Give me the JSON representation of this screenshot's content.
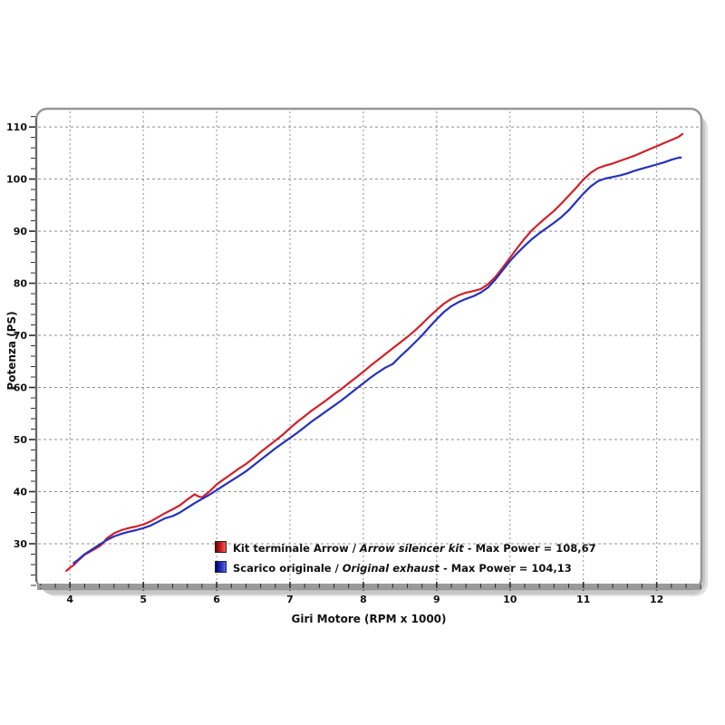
{
  "axes": {
    "x_title": "Giri Motore (RPM x 1000)",
    "y_title": "Potenza (PS)"
  },
  "legend": {
    "separator": "/",
    "items": [
      {
        "label_it": "Kit terminale Arrow",
        "label_en": "Arrow silencer kit",
        "max_label": "- Max Power = 108,67",
        "color": "#d32027",
        "gradient_dark": "#6b0000",
        "gradient_light": "#ff5a5a"
      },
      {
        "label_it": "Scarico originale",
        "label_en": "Original exhaust",
        "max_label": "- Max Power = 104,13",
        "color": "#2531bd",
        "gradient_dark": "#00006b",
        "gradient_light": "#5a66ff"
      }
    ]
  },
  "chart_data": {
    "type": "line",
    "title": "",
    "xlabel": "Giri Motore (RPM x 1000)",
    "ylabel": "Potenza (PS)",
    "xlim": [
      3.54,
      12.61
    ],
    "ylim": [
      21.3,
      113.5
    ],
    "x_major_ticks": [
      4,
      5,
      6,
      7,
      8,
      9,
      10,
      11,
      12
    ],
    "y_major_ticks": [
      30,
      40,
      50,
      60,
      70,
      80,
      90,
      100,
      110
    ],
    "x_minor_step": 0.2,
    "y_minor_step": 2,
    "grid": "dashed",
    "grid_color": "#8f8f8f",
    "frame_color": "#979797",
    "legend_position": "inside-bottom",
    "series": [
      {
        "name": "Kit terminale Arrow / Arrow silencer kit",
        "max_power": "108,67",
        "color": "#d32027",
        "points": [
          [
            3.95,
            24.8
          ],
          [
            4.0,
            25.4
          ],
          [
            4.05,
            25.9
          ],
          [
            4.1,
            26.6
          ],
          [
            4.2,
            27.9
          ],
          [
            4.3,
            28.7
          ],
          [
            4.4,
            29.5
          ],
          [
            4.45,
            30.1
          ],
          [
            4.5,
            31.0
          ],
          [
            4.6,
            32.0
          ],
          [
            4.7,
            32.6
          ],
          [
            4.8,
            33.0
          ],
          [
            4.9,
            33.3
          ],
          [
            5.0,
            33.7
          ],
          [
            5.1,
            34.3
          ],
          [
            5.2,
            35.1
          ],
          [
            5.3,
            35.9
          ],
          [
            5.4,
            36.6
          ],
          [
            5.5,
            37.4
          ],
          [
            5.6,
            38.5
          ],
          [
            5.65,
            39.0
          ],
          [
            5.7,
            39.5
          ],
          [
            5.75,
            39.1
          ],
          [
            5.8,
            38.9
          ],
          [
            5.9,
            40.0
          ],
          [
            6.0,
            41.4
          ],
          [
            6.1,
            42.4
          ],
          [
            6.2,
            43.4
          ],
          [
            6.3,
            44.4
          ],
          [
            6.4,
            45.3
          ],
          [
            6.5,
            46.4
          ],
          [
            6.6,
            47.6
          ],
          [
            6.7,
            48.7
          ],
          [
            6.8,
            49.8
          ],
          [
            6.9,
            50.9
          ],
          [
            7.0,
            52.2
          ],
          [
            7.1,
            53.4
          ],
          [
            7.2,
            54.5
          ],
          [
            7.3,
            55.6
          ],
          [
            7.4,
            56.6
          ],
          [
            7.5,
            57.6
          ],
          [
            7.6,
            58.7
          ],
          [
            7.7,
            59.7
          ],
          [
            7.8,
            60.8
          ],
          [
            7.9,
            61.9
          ],
          [
            8.0,
            63.0
          ],
          [
            8.1,
            64.2
          ],
          [
            8.2,
            65.3
          ],
          [
            8.3,
            66.4
          ],
          [
            8.4,
            67.5
          ],
          [
            8.5,
            68.6
          ],
          [
            8.6,
            69.7
          ],
          [
            8.7,
            70.9
          ],
          [
            8.8,
            72.2
          ],
          [
            8.9,
            73.6
          ],
          [
            9.0,
            74.9
          ],
          [
            9.1,
            76.1
          ],
          [
            9.2,
            77.0
          ],
          [
            9.3,
            77.7
          ],
          [
            9.4,
            78.2
          ],
          [
            9.5,
            78.5
          ],
          [
            9.6,
            78.9
          ],
          [
            9.7,
            79.8
          ],
          [
            9.8,
            81.2
          ],
          [
            9.9,
            83.0
          ],
          [
            10.0,
            84.9
          ],
          [
            10.1,
            86.8
          ],
          [
            10.2,
            88.6
          ],
          [
            10.3,
            90.2
          ],
          [
            10.4,
            91.5
          ],
          [
            10.5,
            92.7
          ],
          [
            10.6,
            93.9
          ],
          [
            10.7,
            95.3
          ],
          [
            10.8,
            96.8
          ],
          [
            10.9,
            98.3
          ],
          [
            11.0,
            99.9
          ],
          [
            11.1,
            101.2
          ],
          [
            11.2,
            102.1
          ],
          [
            11.3,
            102.6
          ],
          [
            11.4,
            103.0
          ],
          [
            11.5,
            103.5
          ],
          [
            11.6,
            104.0
          ],
          [
            11.7,
            104.5
          ],
          [
            11.8,
            105.1
          ],
          [
            11.9,
            105.7
          ],
          [
            12.0,
            106.3
          ],
          [
            12.1,
            106.9
          ],
          [
            12.2,
            107.5
          ],
          [
            12.3,
            108.1
          ],
          [
            12.35,
            108.67
          ]
        ]
      },
      {
        "name": "Scarico originale / Original exhaust",
        "max_power": "104,13",
        "color": "#2531bd",
        "points": [
          [
            4.05,
            26.3
          ],
          [
            4.1,
            26.8
          ],
          [
            4.2,
            28.0
          ],
          [
            4.3,
            28.9
          ],
          [
            4.4,
            29.8
          ],
          [
            4.5,
            30.7
          ],
          [
            4.6,
            31.4
          ],
          [
            4.7,
            31.9
          ],
          [
            4.8,
            32.3
          ],
          [
            4.9,
            32.6
          ],
          [
            5.0,
            33.0
          ],
          [
            5.1,
            33.5
          ],
          [
            5.2,
            34.2
          ],
          [
            5.3,
            34.9
          ],
          [
            5.4,
            35.3
          ],
          [
            5.5,
            36.0
          ],
          [
            5.6,
            36.9
          ],
          [
            5.7,
            37.8
          ],
          [
            5.8,
            38.6
          ],
          [
            5.9,
            39.4
          ],
          [
            6.0,
            40.3
          ],
          [
            6.1,
            41.2
          ],
          [
            6.2,
            42.1
          ],
          [
            6.3,
            43.0
          ],
          [
            6.4,
            43.9
          ],
          [
            6.5,
            45.0
          ],
          [
            6.6,
            46.1
          ],
          [
            6.7,
            47.2
          ],
          [
            6.8,
            48.3
          ],
          [
            6.9,
            49.3
          ],
          [
            7.0,
            50.3
          ],
          [
            7.1,
            51.3
          ],
          [
            7.2,
            52.4
          ],
          [
            7.3,
            53.5
          ],
          [
            7.4,
            54.5
          ],
          [
            7.5,
            55.5
          ],
          [
            7.6,
            56.5
          ],
          [
            7.7,
            57.5
          ],
          [
            7.8,
            58.6
          ],
          [
            7.9,
            59.7
          ],
          [
            8.0,
            60.8
          ],
          [
            8.1,
            61.9
          ],
          [
            8.2,
            62.9
          ],
          [
            8.3,
            63.8
          ],
          [
            8.4,
            64.5
          ],
          [
            8.5,
            65.9
          ],
          [
            8.6,
            67.2
          ],
          [
            8.7,
            68.6
          ],
          [
            8.8,
            70.0
          ],
          [
            8.9,
            71.6
          ],
          [
            9.0,
            73.1
          ],
          [
            9.1,
            74.5
          ],
          [
            9.2,
            75.6
          ],
          [
            9.3,
            76.4
          ],
          [
            9.4,
            77.0
          ],
          [
            9.5,
            77.5
          ],
          [
            9.6,
            78.2
          ],
          [
            9.7,
            79.2
          ],
          [
            9.8,
            80.7
          ],
          [
            9.9,
            82.5
          ],
          [
            10.0,
            84.3
          ],
          [
            10.1,
            85.8
          ],
          [
            10.2,
            87.2
          ],
          [
            10.3,
            88.5
          ],
          [
            10.4,
            89.6
          ],
          [
            10.5,
            90.6
          ],
          [
            10.6,
            91.6
          ],
          [
            10.7,
            92.7
          ],
          [
            10.8,
            94.0
          ],
          [
            10.9,
            95.6
          ],
          [
            11.0,
            97.2
          ],
          [
            11.1,
            98.6
          ],
          [
            11.2,
            99.6
          ],
          [
            11.3,
            100.1
          ],
          [
            11.4,
            100.4
          ],
          [
            11.5,
            100.7
          ],
          [
            11.6,
            101.1
          ],
          [
            11.7,
            101.6
          ],
          [
            11.8,
            102.0
          ],
          [
            11.9,
            102.4
          ],
          [
            12.0,
            102.8
          ],
          [
            12.1,
            103.2
          ],
          [
            12.2,
            103.7
          ],
          [
            12.3,
            104.1
          ],
          [
            12.33,
            104.13
          ]
        ]
      }
    ]
  }
}
